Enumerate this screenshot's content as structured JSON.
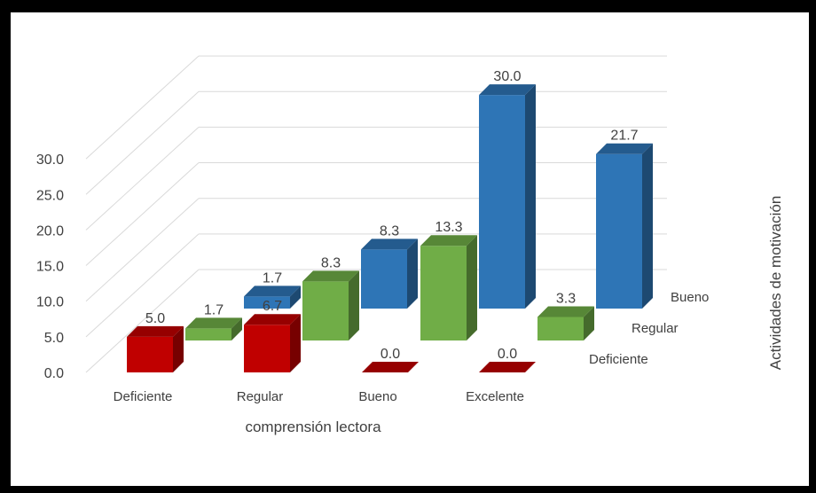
{
  "chart_data": {
    "type": "bar",
    "subtype": "3d-grouped",
    "categories": [
      "Deficiente",
      "Regular",
      "Bueno",
      "Excelente"
    ],
    "series": [
      {
        "name": "Deficiente",
        "values": [
          5.0,
          6.7,
          0.0,
          0.0
        ],
        "color": "#C00000"
      },
      {
        "name": "Regular",
        "values": [
          1.7,
          8.3,
          13.3,
          3.3
        ],
        "color": "#70AD47"
      },
      {
        "name": "Bueno",
        "values": [
          1.7,
          8.3,
          30.0,
          21.7
        ],
        "color": "#2E75B6"
      }
    ],
    "data_labels": [
      [
        "5.0",
        "6.7",
        "0.0",
        "0.0"
      ],
      [
        "1.7",
        "8.3",
        "13.3",
        "3.3"
      ],
      [
        "1.7",
        "8.3",
        "30.0",
        "21.7"
      ]
    ],
    "yticks": [
      "0.0",
      "5.0",
      "10.0",
      "15.0",
      "20.0",
      "25.0",
      "30.0"
    ],
    "ylim": [
      0,
      30
    ],
    "xlabel": "comprensión lectora",
    "zlabel": "Actividades de motivación",
    "grid": true,
    "legend": "none"
  }
}
